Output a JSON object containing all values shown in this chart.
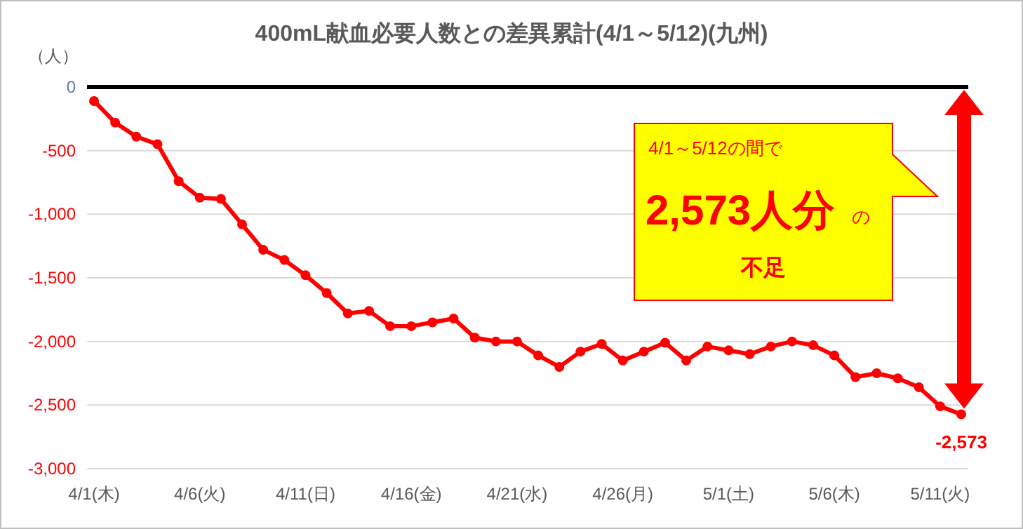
{
  "chart_data": {
    "type": "line",
    "title": "400mL献血必要人数との差異累計(4/1～5/12)(九州)",
    "ylabel": "（人）",
    "categories": [
      "4/1(木)",
      null,
      null,
      null,
      null,
      "4/6(火)",
      null,
      null,
      null,
      null,
      "4/11(日)",
      null,
      null,
      null,
      null,
      "4/16(金)",
      null,
      null,
      null,
      null,
      "4/21(水)",
      null,
      null,
      null,
      null,
      "4/26(月)",
      null,
      null,
      null,
      null,
      "5/1(土)",
      null,
      null,
      null,
      null,
      "5/6(木)",
      null,
      null,
      null,
      null,
      "5/11(火)",
      null
    ],
    "series": [
      {
        "color": "#ff0000",
        "values": [
          -110,
          -280,
          -390,
          -450,
          -740,
          -870,
          -880,
          -1080,
          -1280,
          -1360,
          -1480,
          -1620,
          -1780,
          -1760,
          -1880,
          -1880,
          -1850,
          -1820,
          -1970,
          -2000,
          -2000,
          -2110,
          -2200,
          -2080,
          -2020,
          -2150,
          -2080,
          -2010,
          -2150,
          -2040,
          -2070,
          -2100,
          -2040,
          -2000,
          -2030,
          -2110,
          -2280,
          -2250,
          -2290,
          -2360,
          -2510,
          -2573
        ],
        "value_labels": [
          null,
          null,
          null,
          null,
          null,
          null,
          null,
          null,
          null,
          null,
          null,
          null,
          null,
          null,
          null,
          null,
          null,
          null,
          null,
          null,
          null,
          null,
          null,
          null,
          null,
          null,
          null,
          null,
          null,
          null,
          null,
          null,
          null,
          null,
          null,
          null,
          null,
          null,
          null,
          null,
          null,
          "-2,573"
        ]
      }
    ],
    "ylim": [
      -3000,
      0
    ],
    "yticks": [
      0,
      {
        "value": -500,
        "label": "-500"
      },
      {
        "value": -1000,
        "label": "-1,000"
      },
      {
        "value": -1500,
        "label": "-1,500"
      },
      {
        "value": -2000,
        "label": "-2,000"
      },
      {
        "value": -2500,
        "label": "-2,500"
      },
      {
        "value": -3000,
        "label": "-3,000"
      }
    ],
    "grid": "y",
    "marker": "circle",
    "line_style": "solid",
    "annotations": [
      "4/1～5/12の間で",
      "2,573人分",
      "の",
      "不足"
    ]
  }
}
